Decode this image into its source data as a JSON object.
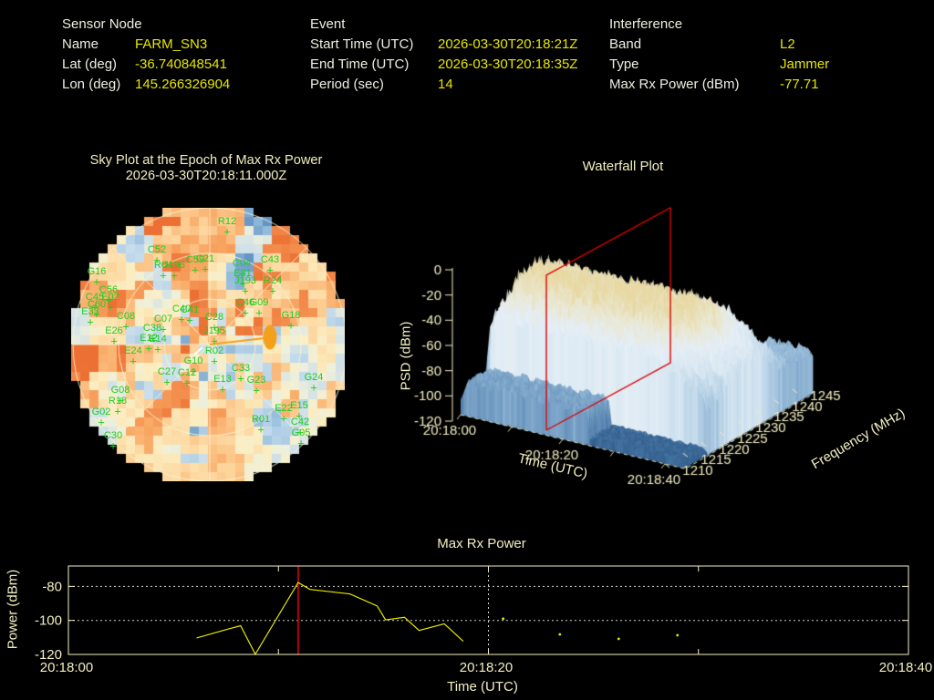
{
  "colors": {
    "background": "#000000",
    "header_label": "#eeeee2",
    "header_value": "#e6e600",
    "title_text": "#f2efc2",
    "axis_text": "#f2efc2",
    "satellite_green": "#23cd23",
    "power_line_yellow": "#e6e600",
    "epoch_red": "#dd0000",
    "dotted_grid": "#d0d0d0",
    "jammer_orange": "#f5a01a"
  },
  "header": {
    "sensor": {
      "title": "Sensor Node",
      "rows": [
        {
          "label": "Name",
          "value": "FARM_SN3"
        },
        {
          "label": "Lat (deg)",
          "value": "-36.740848541"
        },
        {
          "label": "Lon (deg)",
          "value": "145.266326904"
        }
      ]
    },
    "event": {
      "title": "Event",
      "rows": [
        {
          "label": "Start Time (UTC)",
          "value": "2026-03-30T20:18:21Z"
        },
        {
          "label": "End Time (UTC)",
          "value": "2026-03-30T20:18:35Z"
        },
        {
          "label": "Period (sec)",
          "value": "14"
        }
      ]
    },
    "interference": {
      "title": "Interference",
      "rows": [
        {
          "label": "Band",
          "value": "L2"
        },
        {
          "label": "Type",
          "value": "Jammer"
        },
        {
          "label": "Max Rx Power (dBm)",
          "value": "-77.71"
        }
      ]
    }
  },
  "chart_data": [
    {
      "id": "skyplot",
      "type": "heatmap",
      "projection": "polar_sky",
      "title": "Sky Plot at the Epoch of Max Rx Power",
      "epoch": "2026-03-30T20:18:11.000Z",
      "colormap": "RdYlBu (blue=low, orange=high)",
      "elevation_rings_deg": [
        0,
        30,
        60
      ],
      "azimuth_spoke_step_deg": 45,
      "jammer_indicator": {
        "direction": "east-of-center",
        "color": "#f5a01a"
      },
      "satellites": [
        [
          "R12",
          171,
          26
        ],
        [
          "C52",
          94,
          57
        ],
        [
          "G16",
          28,
          81
        ],
        [
          "R04",
          101,
          74
        ],
        [
          "J196",
          113,
          74
        ],
        [
          "C59",
          136,
          68
        ],
        [
          "C21",
          147,
          67
        ],
        [
          "C43",
          218,
          68
        ],
        [
          "C04",
          187,
          72
        ],
        [
          "E31",
          188,
          83
        ],
        [
          "J193",
          191,
          91
        ],
        [
          "R24",
          221,
          91
        ],
        [
          "C46",
          191,
          115
        ],
        [
          "G09",
          206,
          115
        ],
        [
          "G18",
          241,
          129
        ],
        [
          "C56",
          41,
          101
        ],
        [
          "C45",
          26,
          109
        ],
        [
          "E02",
          43,
          109
        ],
        [
          "C60",
          28,
          117
        ],
        [
          "E33",
          21,
          125
        ],
        [
          "C08",
          60,
          130
        ],
        [
          "C07",
          101,
          133
        ],
        [
          "C40",
          121,
          122
        ],
        [
          "C41",
          130,
          123
        ],
        [
          "C28",
          157,
          131
        ],
        [
          "J195",
          157,
          146
        ],
        [
          "R02",
          157,
          168
        ],
        [
          "G10",
          134,
          179
        ],
        [
          "C27",
          105,
          191
        ],
        [
          "C12",
          127,
          192
        ],
        [
          "E24",
          68,
          168
        ],
        [
          "E26",
          47,
          146
        ],
        [
          "C38",
          89,
          143
        ],
        [
          "E12",
          85,
          154
        ],
        [
          "E14",
          95,
          155
        ],
        [
          "C33",
          186,
          187
        ],
        [
          "G23",
          203,
          200
        ],
        [
          "E13",
          166,
          199
        ],
        [
          "G24",
          266,
          197
        ],
        [
          "G08",
          54,
          211
        ],
        [
          "R18",
          51,
          223
        ],
        [
          "G02",
          33,
          235
        ],
        [
          "C30",
          46,
          261
        ],
        [
          "R01",
          208,
          243
        ],
        [
          "E22",
          233,
          231
        ],
        [
          "E15",
          250,
          228
        ],
        [
          "C42",
          251,
          246
        ],
        [
          "G05",
          252,
          258
        ]
      ]
    },
    {
      "id": "waterfall",
      "type": "surface_3d",
      "title": "Waterfall Plot",
      "xlabel": "Time (UTC)",
      "ylabel": "PSD (dBm)",
      "zlabel": "Frequency (MHz)",
      "time_ticks": [
        "20:18:00",
        "20:18:20",
        "20:18:40"
      ],
      "time_tick_sec": [
        0,
        20,
        40
      ],
      "time_minor_tick_sec": [
        10,
        30
      ],
      "psd_ticks": [
        0,
        -20,
        -40,
        -60,
        -80,
        -100,
        -120
      ],
      "freq_ticks": [
        1210,
        1215,
        1220,
        1225,
        1230,
        1235,
        1240,
        1245
      ],
      "psd_range_dbm": [
        -120,
        0
      ],
      "freq_range_mhz": [
        1210,
        1245
      ],
      "epoch_plane": {
        "time_utc": "20:18:11",
        "color": "#dd0000"
      },
      "surface_summary": {
        "signal_band_mhz": [
          1216.5,
          1236.5
        ],
        "band_peak_psd_dbm": -30,
        "noise_floor_psd_dbm": -96,
        "appearance": "light-blue terrain with cream ridge tops"
      }
    },
    {
      "id": "max_rx_power",
      "type": "line",
      "title": "Max Rx Power",
      "xlabel": "Time (UTC)",
      "ylabel": "Power (dBm)",
      "x_tick_labels": [
        "20:18:00",
        "20:18:20",
        "20:18:40"
      ],
      "x_tick_sec": [
        0,
        20,
        40
      ],
      "x_minor_tick_sec": [
        10,
        30
      ],
      "xlim_sec": [
        0,
        40
      ],
      "ylim": [
        -120,
        -68
      ],
      "y_ticks": [
        -80,
        -100,
        -120
      ],
      "gridlines_y": [
        -80,
        -100
      ],
      "dotted_vline_sec": 20,
      "epoch_vline_sec": 10.94,
      "series": [
        {
          "name": "max_rx_power_dbm",
          "points_sec_dbm": [
            [
              6.1,
              -110.3
            ],
            [
              7.6,
              -105.1
            ],
            [
              8.2,
              -103.1
            ],
            [
              8.9,
              -119.9
            ],
            [
              10.94,
              -77.71
            ],
            [
              11.5,
              -81.8
            ],
            [
              13.4,
              -84.4
            ],
            [
              14.7,
              -91.5
            ],
            [
              15.1,
              -99.7
            ],
            [
              16.0,
              -98.2
            ],
            [
              16.7,
              -105.9
            ],
            [
              17.9,
              -102.0
            ],
            [
              18.8,
              -112.3
            ]
          ]
        }
      ],
      "isolated_points_sec_dbm": [
        [
          20.7,
          -99.0
        ],
        [
          23.4,
          -108.2
        ],
        [
          26.2,
          -110.8
        ],
        [
          29.0,
          -108.7
        ]
      ]
    }
  ]
}
